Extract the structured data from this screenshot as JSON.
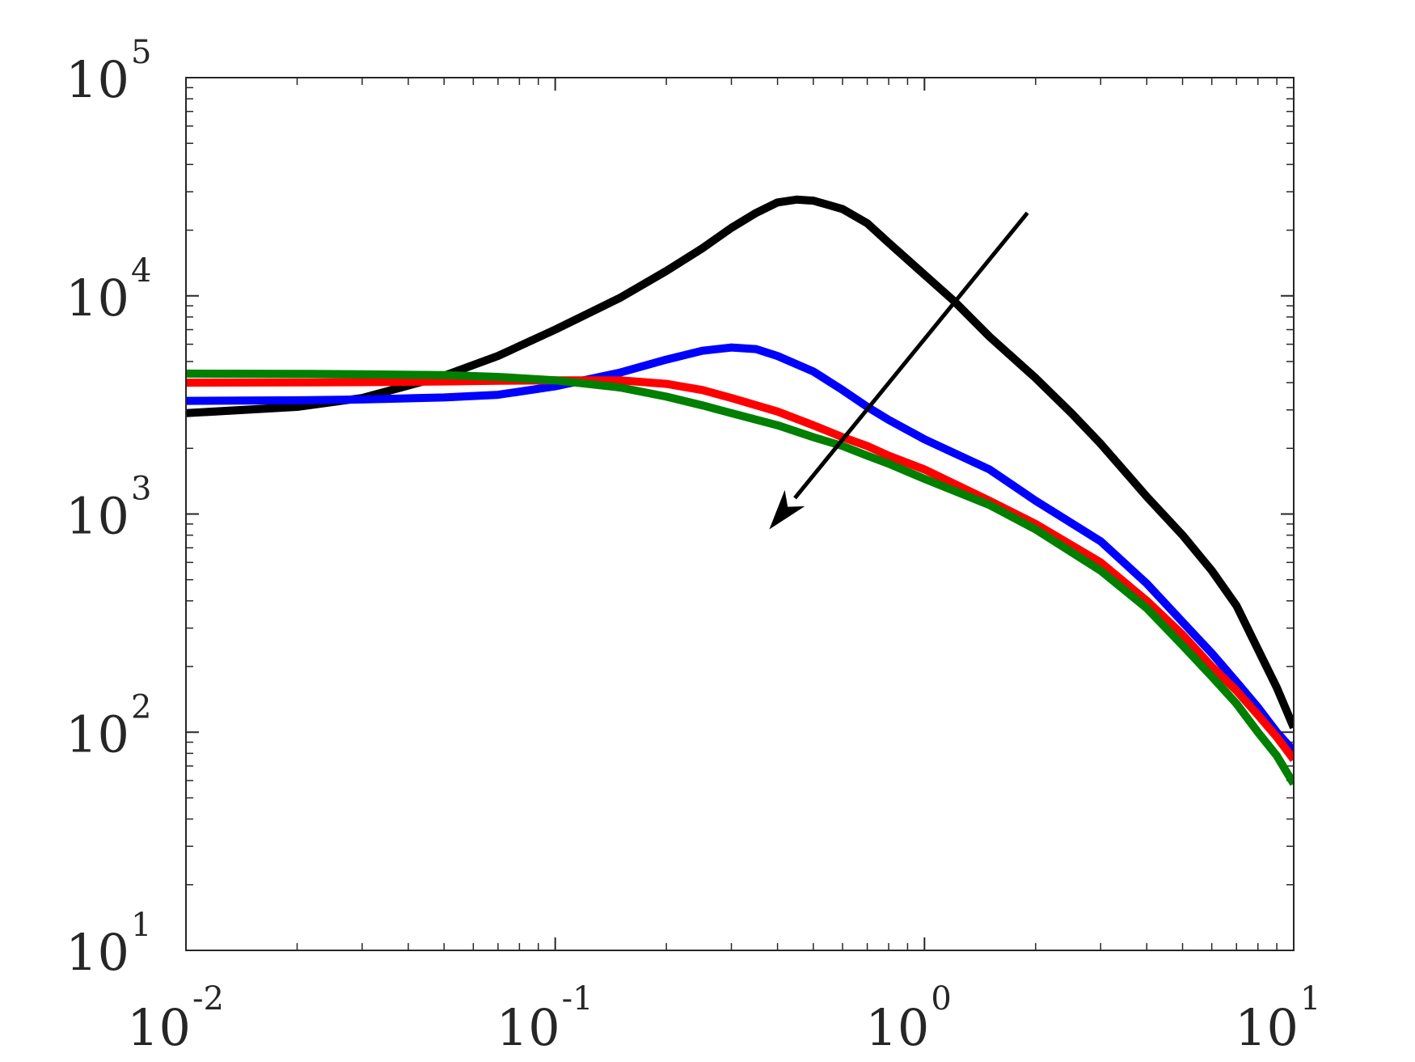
{
  "chart_data": {
    "type": "line",
    "title": "",
    "xlabel": "",
    "ylabel": "",
    "x_scale": "log",
    "y_scale": "log",
    "xlim": [
      0.01,
      10
    ],
    "ylim": [
      10,
      100000
    ],
    "grid": false,
    "x_ticks": [
      {
        "value": 0.01,
        "base": "10",
        "exp": "-2"
      },
      {
        "value": 0.1,
        "base": "10",
        "exp": "-1"
      },
      {
        "value": 1,
        "base": "10",
        "exp": "0"
      },
      {
        "value": 10,
        "base": "10",
        "exp": "1"
      }
    ],
    "y_ticks": [
      {
        "value": 10,
        "base": "10",
        "exp": "1"
      },
      {
        "value": 100,
        "base": "10",
        "exp": "2"
      },
      {
        "value": 1000,
        "base": "10",
        "exp": "3"
      },
      {
        "value": 10000,
        "base": "10",
        "exp": "4"
      },
      {
        "value": 100000,
        "base": "10",
        "exp": "5"
      }
    ],
    "series": [
      {
        "color": "#000000",
        "points": [
          [
            0.01,
            2900
          ],
          [
            0.02,
            3100
          ],
          [
            0.03,
            3400
          ],
          [
            0.05,
            4300
          ],
          [
            0.07,
            5300
          ],
          [
            0.1,
            7000
          ],
          [
            0.15,
            9800
          ],
          [
            0.2,
            13000
          ],
          [
            0.25,
            16500
          ],
          [
            0.3,
            20500
          ],
          [
            0.35,
            24000
          ],
          [
            0.4,
            26800
          ],
          [
            0.45,
            27600
          ],
          [
            0.5,
            27300
          ],
          [
            0.6,
            25000
          ],
          [
            0.7,
            21500
          ],
          [
            0.8,
            17500
          ],
          [
            1.0,
            12500
          ],
          [
            1.2,
            9500
          ],
          [
            1.5,
            6500
          ],
          [
            2.0,
            4200
          ],
          [
            2.5,
            2900
          ],
          [
            3.0,
            2100
          ],
          [
            4.0,
            1200
          ],
          [
            5.0,
            800
          ],
          [
            6.0,
            550
          ],
          [
            7.0,
            380
          ],
          [
            8.0,
            240
          ],
          [
            9.0,
            160
          ],
          [
            10.0,
            105
          ]
        ]
      },
      {
        "color": "#0000ff",
        "points": [
          [
            0.01,
            3300
          ],
          [
            0.02,
            3320
          ],
          [
            0.03,
            3350
          ],
          [
            0.05,
            3420
          ],
          [
            0.07,
            3520
          ],
          [
            0.1,
            3850
          ],
          [
            0.15,
            4450
          ],
          [
            0.2,
            5100
          ],
          [
            0.25,
            5600
          ],
          [
            0.3,
            5800
          ],
          [
            0.35,
            5700
          ],
          [
            0.4,
            5300
          ],
          [
            0.5,
            4500
          ],
          [
            0.6,
            3700
          ],
          [
            0.7,
            3100
          ],
          [
            0.8,
            2700
          ],
          [
            1.0,
            2200
          ],
          [
            1.5,
            1600
          ],
          [
            2.0,
            1150
          ],
          [
            3.0,
            750
          ],
          [
            4.0,
            480
          ],
          [
            5.0,
            320
          ],
          [
            6.0,
            230
          ],
          [
            7.0,
            170
          ],
          [
            8.0,
            130
          ],
          [
            9.0,
            100
          ],
          [
            10.0,
            82
          ]
        ]
      },
      {
        "color": "#ff0000",
        "points": [
          [
            0.01,
            4000
          ],
          [
            0.02,
            4010
          ],
          [
            0.03,
            4020
          ],
          [
            0.05,
            4050
          ],
          [
            0.07,
            4080
          ],
          [
            0.1,
            4100
          ],
          [
            0.15,
            4100
          ],
          [
            0.2,
            3950
          ],
          [
            0.25,
            3700
          ],
          [
            0.3,
            3400
          ],
          [
            0.4,
            2950
          ],
          [
            0.5,
            2550
          ],
          [
            0.6,
            2250
          ],
          [
            0.7,
            2050
          ],
          [
            0.8,
            1850
          ],
          [
            1.0,
            1600
          ],
          [
            1.5,
            1150
          ],
          [
            2.0,
            900
          ],
          [
            3.0,
            600
          ],
          [
            4.0,
            400
          ],
          [
            5.0,
            280
          ],
          [
            6.0,
            200
          ],
          [
            7.0,
            155
          ],
          [
            8.0,
            120
          ],
          [
            9.0,
            95
          ],
          [
            10.0,
            75
          ]
        ]
      },
      {
        "color": "#007f00",
        "points": [
          [
            0.01,
            4400
          ],
          [
            0.02,
            4390
          ],
          [
            0.03,
            4370
          ],
          [
            0.05,
            4330
          ],
          [
            0.07,
            4250
          ],
          [
            0.1,
            4100
          ],
          [
            0.15,
            3800
          ],
          [
            0.2,
            3450
          ],
          [
            0.25,
            3150
          ],
          [
            0.3,
            2900
          ],
          [
            0.4,
            2550
          ],
          [
            0.5,
            2250
          ],
          [
            0.6,
            2050
          ],
          [
            0.7,
            1850
          ],
          [
            0.8,
            1700
          ],
          [
            1.0,
            1450
          ],
          [
            1.5,
            1100
          ],
          [
            2.0,
            850
          ],
          [
            3.0,
            550
          ],
          [
            4.0,
            370
          ],
          [
            5.0,
            250
          ],
          [
            6.0,
            180
          ],
          [
            7.0,
            135
          ],
          [
            8.0,
            100
          ],
          [
            9.0,
            78
          ],
          [
            10.0,
            58
          ]
        ]
      }
    ],
    "annotations": [
      {
        "type": "arrow",
        "from": [
          1.9,
          24000
        ],
        "to": [
          0.38,
          850
        ],
        "color": "#000000"
      }
    ]
  }
}
